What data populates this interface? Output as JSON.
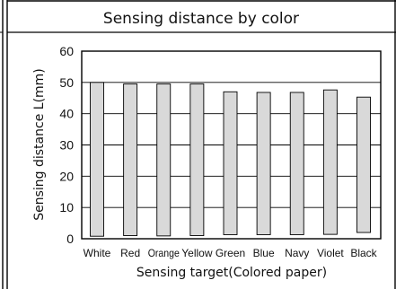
{
  "chart_data": {
    "type": "bar",
    "title": "Sensing distance by color",
    "xlabel": "Sensing target(Colored paper)",
    "ylabel": "Sensing distance L(mm)",
    "ylim": [
      0,
      60
    ],
    "yticks": [
      0,
      10,
      20,
      30,
      40,
      50,
      60
    ],
    "grid": true,
    "categories": [
      "White",
      "Red",
      "Orange",
      "Yellow",
      "Green",
      "Blue",
      "Navy",
      "Violet",
      "Black"
    ],
    "series": [
      {
        "low": [
          0.8,
          1.0,
          0.9,
          1.0,
          1.3,
          1.3,
          1.3,
          1.4,
          2.0
        ],
        "high": [
          50.0,
          49.5,
          49.5,
          49.5,
          47.0,
          46.8,
          46.8,
          47.6,
          45.3
        ]
      }
    ]
  }
}
